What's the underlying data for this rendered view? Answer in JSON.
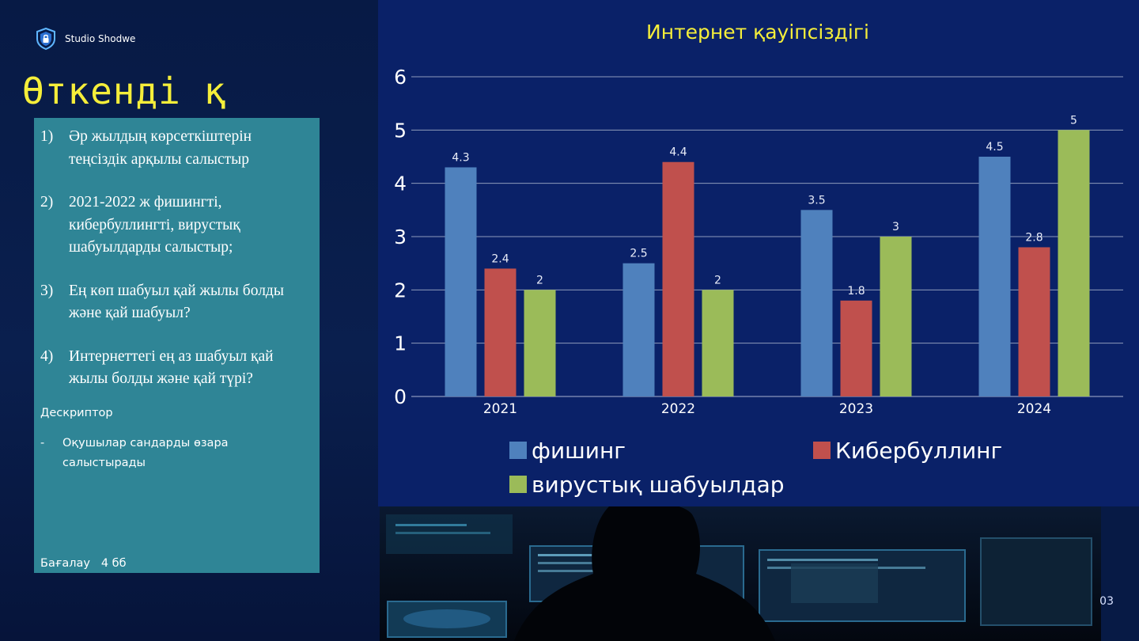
{
  "brand": {
    "name": "Studio Shodwe",
    "icon": "shield-lock-icon"
  },
  "slide_title": "Өткенді қ",
  "tasks": [
    {
      "num": "1)",
      "text": "Әр жылдың көрсеткіштерін теңсіздік арқылы салыстыр"
    },
    {
      "num": "2)",
      "text": "2021-2022 ж фишингті, кибербуллингті, вирустық шабуылдарды салыстыр;"
    },
    {
      "num": "3)",
      "text": "Ең көп шабуыл қай жылы болды және қай шабуыл?"
    },
    {
      "num": "4)",
      "text": "Интернеттегі ең аз шабуыл қай жылы болды және қай түрі?"
    }
  ],
  "descriptor": {
    "title": "Дескриптор",
    "items": [
      {
        "bullet": "-",
        "text": "Оқушылар сандарды өзара салыстырады"
      }
    ]
  },
  "grade": {
    "label": "Бағалау",
    "value": "4 бб"
  },
  "page_number_fragment": "03",
  "colors": {
    "panel": "#0a2168",
    "task_box": "#2f8596",
    "title": "#f5ee3a"
  },
  "chart_data": {
    "type": "bar",
    "title": "Интернет қауіпсіздігі",
    "categories": [
      "2021",
      "2022",
      "2023",
      "2024"
    ],
    "series": [
      {
        "name": "фишинг",
        "color": "#4f81bd",
        "values": [
          4.3,
          2.5,
          3.5,
          4.5
        ],
        "labels": [
          "4.3",
          "2.5",
          "3.5",
          "4.5"
        ]
      },
      {
        "name": "Кибербуллинг",
        "color": "#c0504d",
        "values": [
          2.4,
          4.4,
          1.8,
          2.8
        ],
        "labels": [
          "2.4",
          "4.4",
          "1.8",
          "2.8"
        ]
      },
      {
        "name": "вирустық шабуылдар",
        "color": "#9bbb59",
        "values": [
          2,
          2,
          3,
          5
        ],
        "labels": [
          "2",
          "2",
          "3",
          "5"
        ]
      }
    ],
    "ylim": [
      0,
      6
    ],
    "yticks": [
      "0",
      "1",
      "2",
      "3",
      "4",
      "5",
      "6"
    ],
    "grid": true,
    "legend": "bottom"
  }
}
